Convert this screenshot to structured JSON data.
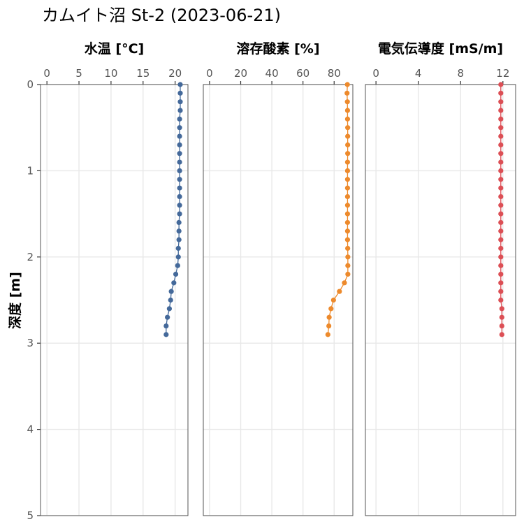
{
  "title": "カムイト沼 St-2 (2023-06-21)",
  "chart_data": {
    "type": "line",
    "ylabel": "深度 [m]",
    "ylim": [
      0,
      5
    ],
    "y_ticks": [
      0,
      1,
      2,
      3,
      4,
      5
    ],
    "y_reversed": true,
    "grid": true,
    "panels": [
      {
        "title": "水温 [°C]",
        "xlim": [
          -1,
          22
        ],
        "x_ticks": [
          0,
          5,
          10,
          15,
          20
        ],
        "color": "#44699A",
        "points": [
          [
            20.8,
            0.0
          ],
          [
            20.8,
            0.1
          ],
          [
            20.8,
            0.2
          ],
          [
            20.8,
            0.3
          ],
          [
            20.7,
            0.4
          ],
          [
            20.7,
            0.5
          ],
          [
            20.7,
            0.6
          ],
          [
            20.7,
            0.7
          ],
          [
            20.7,
            0.8
          ],
          [
            20.7,
            0.9
          ],
          [
            20.7,
            1.0
          ],
          [
            20.7,
            1.1
          ],
          [
            20.7,
            1.2
          ],
          [
            20.7,
            1.3
          ],
          [
            20.7,
            1.4
          ],
          [
            20.7,
            1.5
          ],
          [
            20.6,
            1.6
          ],
          [
            20.6,
            1.7
          ],
          [
            20.6,
            1.8
          ],
          [
            20.5,
            1.9
          ],
          [
            20.5,
            2.0
          ],
          [
            20.4,
            2.1
          ],
          [
            20.1,
            2.2
          ],
          [
            19.8,
            2.3
          ],
          [
            19.4,
            2.4
          ],
          [
            19.3,
            2.5
          ],
          [
            19.1,
            2.6
          ],
          [
            18.8,
            2.7
          ],
          [
            18.6,
            2.8
          ],
          [
            18.6,
            2.9
          ]
        ]
      },
      {
        "title": "溶存酸素 [%]",
        "xlim": [
          -4,
          92
        ],
        "x_ticks": [
          0,
          20,
          40,
          60,
          80
        ],
        "color": "#ED8A2C",
        "points": [
          [
            88.5,
            0.0
          ],
          [
            88.3,
            0.1
          ],
          [
            88.5,
            0.2
          ],
          [
            88.6,
            0.3
          ],
          [
            88.6,
            0.4
          ],
          [
            88.7,
            0.5
          ],
          [
            88.7,
            0.6
          ],
          [
            88.7,
            0.7
          ],
          [
            88.7,
            0.8
          ],
          [
            88.6,
            0.9
          ],
          [
            88.6,
            1.0
          ],
          [
            88.6,
            1.1
          ],
          [
            88.6,
            1.2
          ],
          [
            88.6,
            1.3
          ],
          [
            88.6,
            1.4
          ],
          [
            88.6,
            1.5
          ],
          [
            88.6,
            1.6
          ],
          [
            88.6,
            1.7
          ],
          [
            88.6,
            1.8
          ],
          [
            88.7,
            1.9
          ],
          [
            88.8,
            2.0
          ],
          [
            88.8,
            2.1
          ],
          [
            88.8,
            2.2
          ],
          [
            86.6,
            2.3
          ],
          [
            83.4,
            2.4
          ],
          [
            79.6,
            2.5
          ],
          [
            78.0,
            2.6
          ],
          [
            76.8,
            2.7
          ],
          [
            76.6,
            2.8
          ],
          [
            76.0,
            2.9
          ]
        ]
      },
      {
        "title": "電気伝導度 [mS/m]",
        "xlim": [
          -1,
          13.2
        ],
        "x_ticks": [
          0,
          4,
          8,
          12
        ],
        "color": "#DC4F55",
        "points": [
          [
            11.8,
            0.0
          ],
          [
            11.8,
            0.1
          ],
          [
            11.8,
            0.2
          ],
          [
            11.8,
            0.3
          ],
          [
            11.8,
            0.4
          ],
          [
            11.8,
            0.5
          ],
          [
            11.8,
            0.6
          ],
          [
            11.8,
            0.7
          ],
          [
            11.8,
            0.8
          ],
          [
            11.8,
            0.9
          ],
          [
            11.8,
            1.0
          ],
          [
            11.8,
            1.1
          ],
          [
            11.8,
            1.2
          ],
          [
            11.8,
            1.3
          ],
          [
            11.8,
            1.4
          ],
          [
            11.8,
            1.5
          ],
          [
            11.8,
            1.6
          ],
          [
            11.8,
            1.7
          ],
          [
            11.8,
            1.8
          ],
          [
            11.8,
            1.9
          ],
          [
            11.8,
            2.0
          ],
          [
            11.8,
            2.1
          ],
          [
            11.8,
            2.2
          ],
          [
            11.8,
            2.3
          ],
          [
            11.8,
            2.4
          ],
          [
            11.8,
            2.5
          ],
          [
            11.9,
            2.6
          ],
          [
            11.9,
            2.7
          ],
          [
            11.9,
            2.8
          ],
          [
            11.9,
            2.9
          ]
        ]
      }
    ]
  }
}
